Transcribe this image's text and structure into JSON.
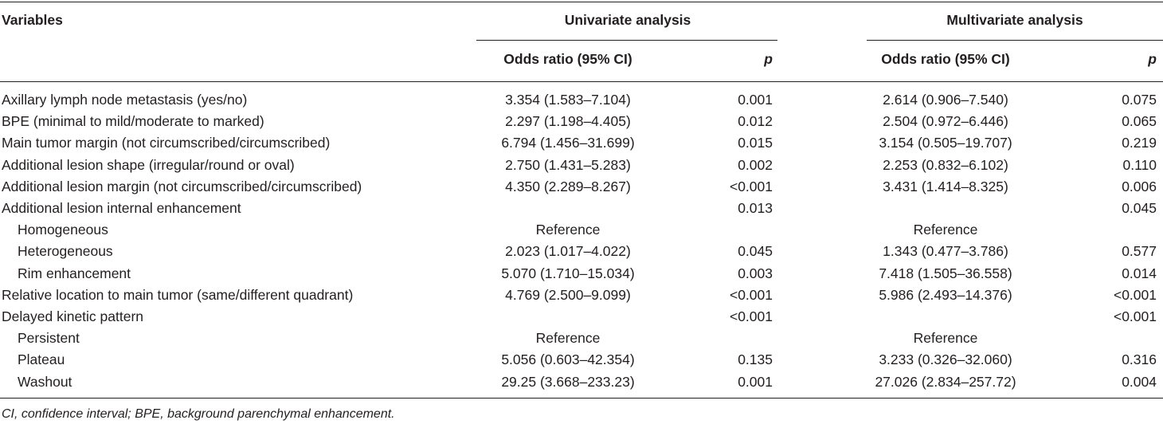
{
  "header": {
    "variables": "Variables",
    "univariate": "Univariate analysis",
    "multivariate": "Multivariate analysis",
    "or_label": "Odds ratio (95% CI)",
    "p_label": "p"
  },
  "rows": [
    {
      "var": "Axillary lymph node metastasis (yes/no)",
      "sub": false,
      "uor": "3.354 (1.583–7.104)",
      "up": "0.001",
      "mor": "2.614 (0.906–7.540)",
      "mp": "0.075"
    },
    {
      "var": "BPE (minimal to mild/moderate to marked)",
      "sub": false,
      "uor": "2.297 (1.198–4.405)",
      "up": "0.012",
      "mor": "2.504 (0.972–6.446)",
      "mp": "0.065"
    },
    {
      "var": "Main tumor margin (not circumscribed/circumscribed)",
      "sub": false,
      "uor": "6.794 (1.456–31.699)",
      "up": "0.015",
      "mor": "3.154 (0.505–19.707)",
      "mp": "0.219"
    },
    {
      "var": "Additional lesion shape (irregular/round or oval)",
      "sub": false,
      "uor": "2.750 (1.431–5.283)",
      "up": "0.002",
      "mor": "2.253 (0.832–6.102)",
      "mp": "0.110"
    },
    {
      "var": "Additional lesion margin (not circumscribed/circumscribed)",
      "sub": false,
      "uor": "4.350 (2.289–8.267)",
      "up": "<0.001",
      "mor": "3.431 (1.414–8.325)",
      "mp": "0.006"
    },
    {
      "var": "Additional lesion internal enhancement",
      "sub": false,
      "uor": "",
      "up": "0.013",
      "mor": "",
      "mp": "0.045"
    },
    {
      "var": "Homogeneous",
      "sub": true,
      "uor": "Reference",
      "up": "",
      "mor": "Reference",
      "mp": ""
    },
    {
      "var": "Heterogeneous",
      "sub": true,
      "uor": "2.023 (1.017–4.022)",
      "up": "0.045",
      "mor": "1.343 (0.477–3.786)",
      "mp": "0.577"
    },
    {
      "var": "Rim enhancement",
      "sub": true,
      "uor": "5.070 (1.710–15.034)",
      "up": "0.003",
      "mor": "7.418 (1.505–36.558)",
      "mp": "0.014"
    },
    {
      "var": "Relative location to main tumor (same/different quadrant)",
      "sub": false,
      "uor": "4.769 (2.500–9.099)",
      "up": "<0.001",
      "mor": "5.986 (2.493–14.376)",
      "mp": "<0.001"
    },
    {
      "var": "Delayed kinetic pattern",
      "sub": false,
      "uor": "",
      "up": "<0.001",
      "mor": "",
      "mp": "<0.001"
    },
    {
      "var": "Persistent",
      "sub": true,
      "uor": "Reference",
      "up": "",
      "mor": "Reference",
      "mp": ""
    },
    {
      "var": "Plateau",
      "sub": true,
      "uor": "5.056 (0.603–42.354)",
      "up": "0.135",
      "mor": "3.233 (0.326–32.060)",
      "mp": "0.316"
    },
    {
      "var": "Washout",
      "sub": true,
      "uor": "29.25 (3.668–233.23)",
      "up": "0.001",
      "mor": "27.026 (2.834–257.72)",
      "mp": "0.004"
    }
  ],
  "footnote": "CI, confidence interval; BPE, background parenchymal enhancement."
}
